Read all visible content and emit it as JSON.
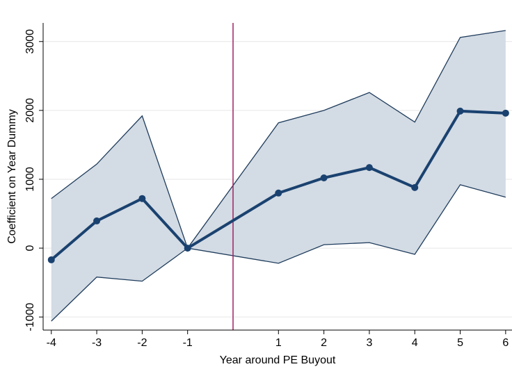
{
  "chart_data": {
    "type": "line",
    "x_label": "Year around PE Buyout",
    "y_label": "Coefficient on Year Dummy",
    "x": [
      -4,
      -3,
      -2,
      -1,
      1,
      2,
      3,
      4,
      5,
      6
    ],
    "series": [
      {
        "color": "#1a4270",
        "values": [
          -170,
          395,
          720,
          0,
          800,
          1020,
          1170,
          880,
          1990,
          1960
        ]
      }
    ],
    "band": {
      "upper": [
        720,
        1220,
        1920,
        0,
        1820,
        2000,
        2260,
        1830,
        3060,
        3160
      ],
      "lower": [
        -1060,
        -420,
        -480,
        0,
        -220,
        50,
        80,
        -90,
        920,
        740
      ],
      "color": "#d3dbe4",
      "edge_color": "#1f3c5c"
    },
    "vline": {
      "x": 0,
      "color": "#a0205e"
    },
    "xlim": [
      -4.18,
      6.14
    ],
    "xticks": [
      -4,
      -3,
      -2,
      -1,
      1,
      2,
      3,
      4,
      5,
      6
    ],
    "ylim": [
      -1190,
      3270
    ],
    "yticks": [
      -1000,
      0,
      1000,
      2000,
      3000
    ],
    "grid": true
  }
}
